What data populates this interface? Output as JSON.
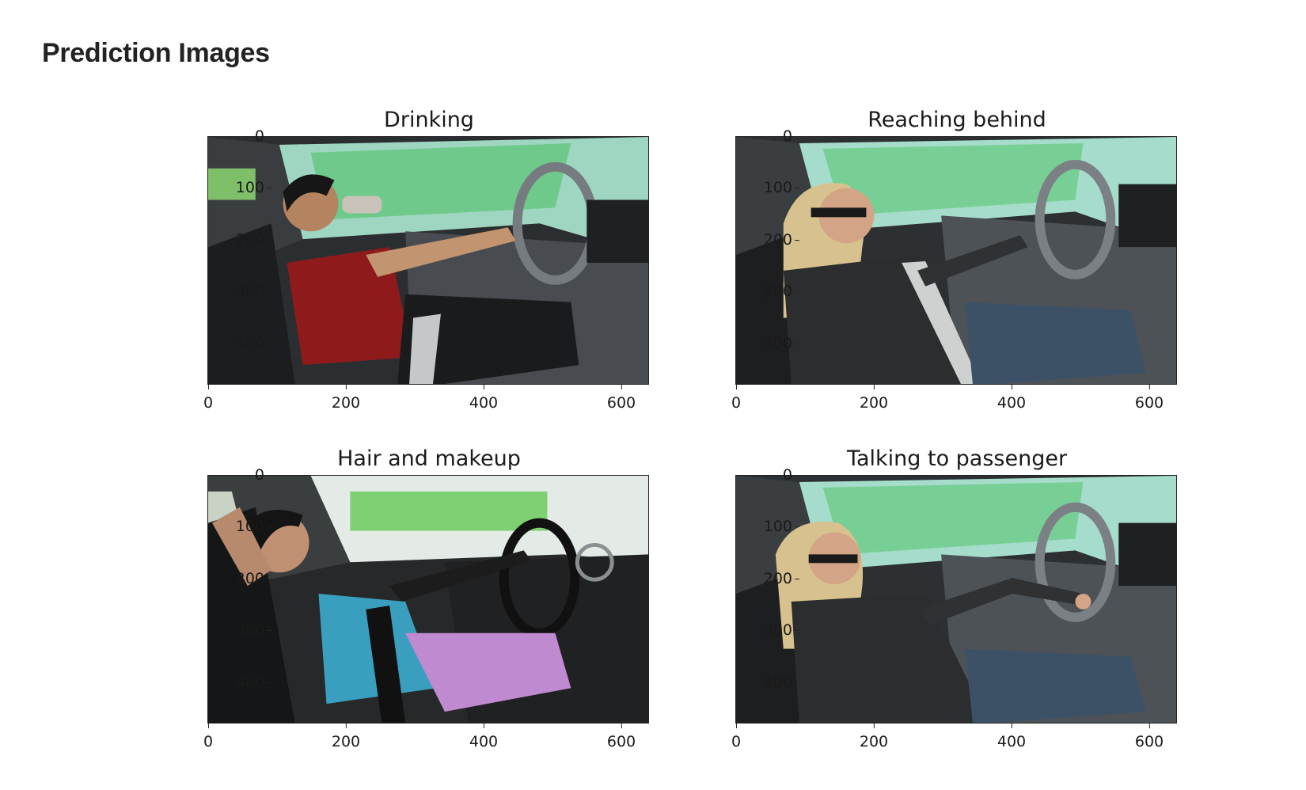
{
  "page": {
    "title": "Prediction Images"
  },
  "axis": {
    "y_ticks": [
      "0",
      "100",
      "200",
      "300",
      "400"
    ],
    "x_ticks": [
      "0",
      "200",
      "400",
      "600"
    ]
  },
  "panels": [
    {
      "title": "Drinking",
      "scene": "man-drinking"
    },
    {
      "title": "Reaching behind",
      "scene": "woman-reaching-behind"
    },
    {
      "title": "Hair and makeup",
      "scene": "woman-hair-makeup"
    },
    {
      "title": "Talking to passenger",
      "scene": "woman-talking-to-passenger"
    }
  ]
}
